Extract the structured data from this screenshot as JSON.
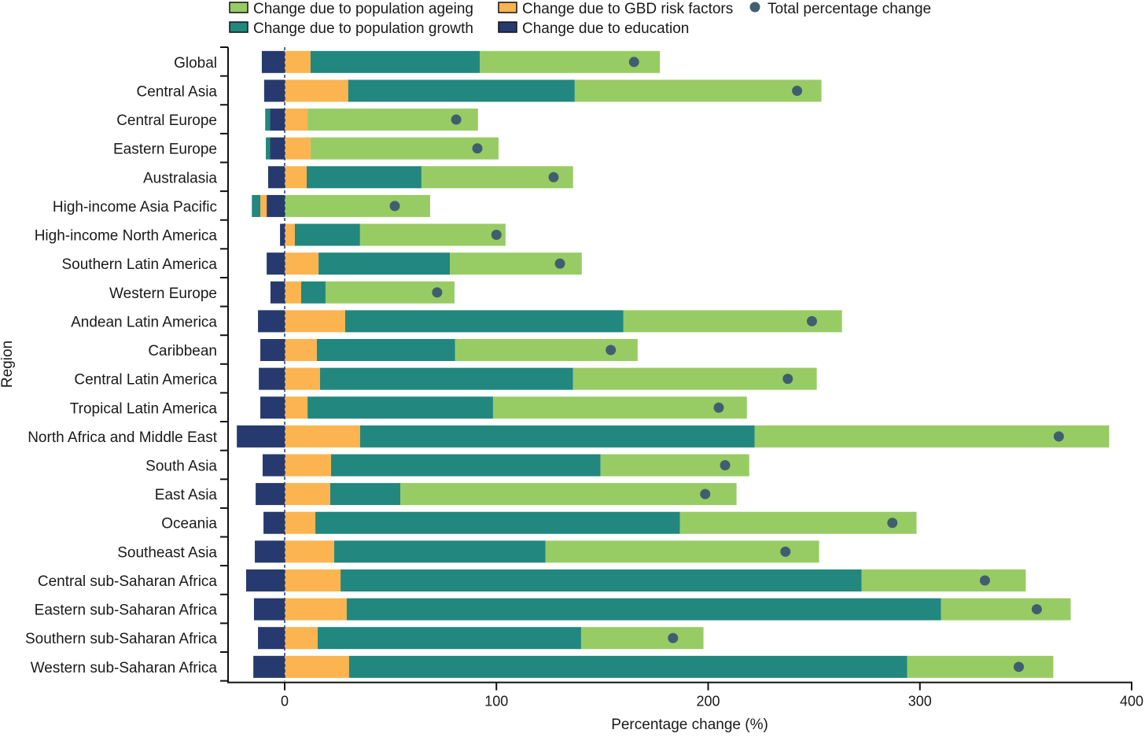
{
  "chart_data": {
    "type": "bar",
    "orientation": "horizontal-stacked",
    "xlabel": "Percentage change (%)",
    "ylabel": "Region",
    "xlim": [
      -27,
      400
    ],
    "xticks": [
      0,
      100,
      200,
      300,
      400
    ],
    "legend": {
      "placement": "top",
      "items": [
        {
          "key": "ageing",
          "label": "Change due to population ageing",
          "color": "#97cc64",
          "marker": "square"
        },
        {
          "key": "growth",
          "label": "Change due to population growth",
          "color": "#22877e",
          "marker": "square"
        },
        {
          "key": "gbd",
          "label": "Change due to GBD risk factors",
          "color": "#fbb44f",
          "marker": "square"
        },
        {
          "key": "education",
          "label": "Change due to education",
          "color": "#263a6f",
          "marker": "square"
        },
        {
          "key": "total",
          "label": "Total percentage change",
          "color": "#3f5f70",
          "marker": "dot"
        }
      ]
    },
    "categories": [
      "Global",
      "Central Asia",
      "Central Europe",
      "Eastern Europe",
      "Australasia",
      "High-income Asia Pacific",
      "High-income North America",
      "Southern Latin America",
      "Western Europe",
      "Andean Latin America",
      "Caribbean",
      "Central Latin America",
      "Tropical Latin America",
      "North Africa and Middle East",
      "South Asia",
      "East Asia",
      "Oceania",
      "Southeast Asia",
      "Central sub-Saharan Africa",
      "Eastern sub-Saharan Africa",
      "Southern sub-Saharan Africa",
      "Western sub-Saharan Africa"
    ],
    "series": [
      {
        "name": "education",
        "values": [
          -10.8,
          -9.7,
          -7,
          -7,
          -7.8,
          -8.5,
          -2.2,
          -8.5,
          -6.7,
          -12.6,
          -11.5,
          -12.2,
          -11.5,
          -22.6,
          -10.4,
          -13.7,
          -10,
          -14.1,
          -18.2,
          -14.5,
          -12.6,
          -14.8
        ]
      },
      {
        "name": "gbd",
        "values": [
          12.2,
          30,
          10.8,
          12.2,
          10.4,
          -3,
          4.8,
          16,
          7.8,
          28.6,
          15.2,
          16.7,
          10.8,
          35.6,
          21.9,
          21.5,
          14.5,
          23.4,
          26.4,
          29.3,
          15.6,
          30.4
        ]
      },
      {
        "name": "growth",
        "values": [
          80,
          107,
          -2.2,
          -1.9,
          54.2,
          -4,
          30.8,
          62,
          11.5,
          131.4,
          65.3,
          119.5,
          87.6,
          186.4,
          127.3,
          33.1,
          172.2,
          99.8,
          246.1,
          280.7,
          124.4,
          263.6
        ]
      },
      {
        "name": "ageing",
        "values": [
          85,
          116.5,
          80.5,
          88.8,
          71.6,
          68.7,
          68.7,
          62.3,
          60.9,
          103.2,
          86.2,
          115.1,
          119.9,
          167.4,
          70.2,
          158.8,
          111.7,
          129.2,
          77.5,
          61.2,
          57.8,
          69
        ]
      },
      {
        "name": "total",
        "values": [
          165,
          242,
          81,
          91,
          127,
          52,
          100,
          130,
          72,
          249,
          154,
          237.6,
          205,
          365.6,
          208,
          198.6,
          287,
          236.5,
          330.7,
          355.2,
          183.4,
          346.7
        ]
      }
    ]
  }
}
